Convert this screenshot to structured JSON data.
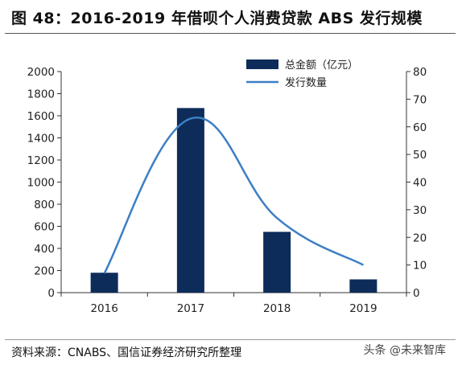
{
  "header": {
    "title": "图 48：2016-2019 年借呗个人消费贷款 ABS 发行规模"
  },
  "footer": {
    "source": "资料来源：CNABS、国信证券经济研究所整理",
    "watermark": "头条 @未来智库"
  },
  "colors": {
    "bar": "#0d2c5a",
    "line": "#3d7fc4"
  },
  "chart_data": {
    "type": "bar",
    "categories": [
      "2016",
      "2017",
      "2018",
      "2019"
    ],
    "series": [
      {
        "name": "总金额（亿元）",
        "type": "bar",
        "axis": "left",
        "values": [
          180,
          1670,
          550,
          120
        ]
      },
      {
        "name": "发行数量",
        "type": "line",
        "axis": "right",
        "values": [
          7,
          63,
          27,
          10
        ]
      }
    ],
    "ylim_left": [
      0,
      2000
    ],
    "yticks_left": [
      0,
      200,
      400,
      600,
      800,
      1000,
      1200,
      1400,
      1600,
      1800,
      2000
    ],
    "ylim_right": [
      0,
      80
    ],
    "yticks_right": [
      0,
      10,
      20,
      30,
      40,
      50,
      60,
      70,
      80
    ],
    "title": "",
    "xlabel": "",
    "ylabel": "",
    "grid": false,
    "legend": "top-right"
  }
}
